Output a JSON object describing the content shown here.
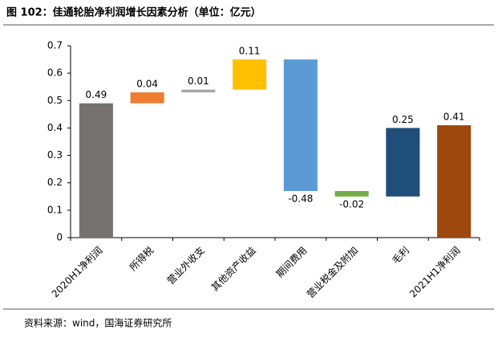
{
  "chart_data": {
    "type": "waterfall",
    "title": "图 102：佳通轮胎净利润增长因素分析（单位：亿元）",
    "source": "资料来源：wind，国海证券研究所",
    "categories": [
      "2020H1净利润",
      "所得税",
      "营业外收支",
      "其他资产收益",
      "期间费用",
      "营业税金及附加",
      "毛利",
      "2021H1净利润"
    ],
    "values": [
      0.49,
      0.04,
      0.01,
      0.11,
      -0.48,
      -0.02,
      0.25,
      0.41
    ],
    "measure": [
      "absolute",
      "relative",
      "relative",
      "relative",
      "relative",
      "relative",
      "relative",
      "absolute"
    ],
    "colors": [
      "#767171",
      "#ed7d31",
      "#a5a5a5",
      "#ffc000",
      "#5b9bd5",
      "#70ad47",
      "#1f4e79",
      "#9e480e"
    ],
    "ylim": [
      0,
      0.7
    ],
    "yticks": [
      0,
      0.1,
      0.2,
      0.3,
      0.4,
      0.5,
      0.6,
      0.7
    ],
    "grid": false
  }
}
